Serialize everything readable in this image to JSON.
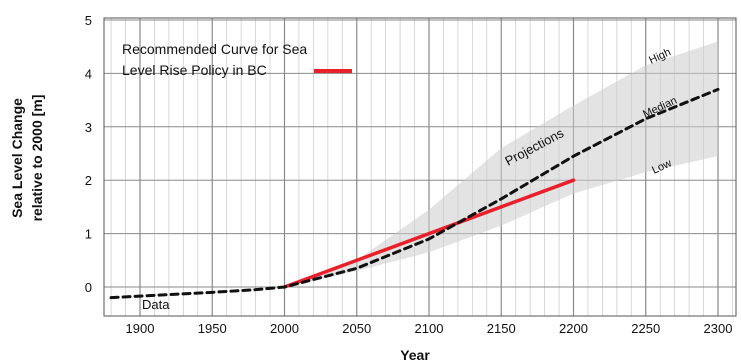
{
  "chart_data": {
    "type": "line",
    "title": "",
    "xlabel": "Year",
    "ylabel_lines": [
      "Sea Level Change",
      "relative to 2000 [m]"
    ],
    "xlim": [
      1880,
      2310
    ],
    "ylim": [
      -0.8,
      5
    ],
    "x_ticks": [
      1900,
      1950,
      2000,
      2050,
      2100,
      2150,
      2200,
      2250,
      2300
    ],
    "y_ticks": [
      0,
      1,
      2,
      3,
      4,
      5
    ],
    "grid": true,
    "legend": {
      "position": "top-left",
      "lines": [
        "Recommended Curve for Sea",
        "Level Rise Policy in BC"
      ]
    },
    "series": [
      {
        "name": "Recommended Curve for Sea Level Rise Policy in BC",
        "color": "#e8202a",
        "style": "solid",
        "x": [
          2000,
          2200
        ],
        "y": [
          0,
          2.0
        ]
      },
      {
        "name": "",
        "color": "#111111",
        "style": "dashed",
        "x": [
          1880,
          1900,
          1950,
          1980,
          2000,
          2050,
          2100,
          2150,
          2200,
          2250,
          2300
        ],
        "y": [
          -0.2,
          -0.17,
          -0.1,
          -0.05,
          0,
          0.35,
          0.9,
          1.65,
          2.45,
          3.15,
          3.7
        ]
      }
    ],
    "band": {
      "x": [
        2000,
        2050,
        2100,
        2150,
        2200,
        2250,
        2300
      ],
      "lower": [
        0,
        0.3,
        0.65,
        1.15,
        1.75,
        2.15,
        2.45
      ],
      "upper": [
        0,
        0.5,
        1.45,
        2.6,
        3.4,
        4.15,
        4.6
      ]
    },
    "annotations": {
      "data": "Data",
      "projections": "Projections",
      "high": "High",
      "median": "Median",
      "low": "Low"
    }
  }
}
